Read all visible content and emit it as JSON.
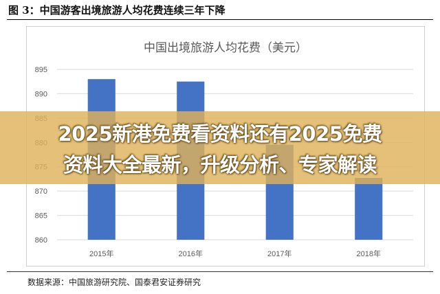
{
  "figure": {
    "title": "图  3：中国游客出境旅游人均花费连续三年下降",
    "source": "数据来源：中国旅游研究院、国泰君安证券研究"
  },
  "overlay": {
    "line1": "2025新港免费看资料还有2025免费",
    "line2": "资料大全最新，升级分析、专家解读"
  },
  "colors": {
    "bar": "#4472C4",
    "grid": "#d9d9d9",
    "overlay": "#deb25a"
  },
  "chart_data": {
    "type": "bar",
    "title": "中国出境旅游人均花费（美元）",
    "categories": [
      "2015年",
      "2016年",
      "2017年",
      "2018年"
    ],
    "values": [
      893,
      892.5,
      879.5,
      872.7
    ],
    "ylim": [
      860,
      895
    ],
    "yticks": [
      860,
      865,
      870,
      875,
      880,
      885,
      890,
      895
    ],
    "xlabel": "",
    "ylabel": "",
    "grid": true,
    "legend": "none"
  }
}
